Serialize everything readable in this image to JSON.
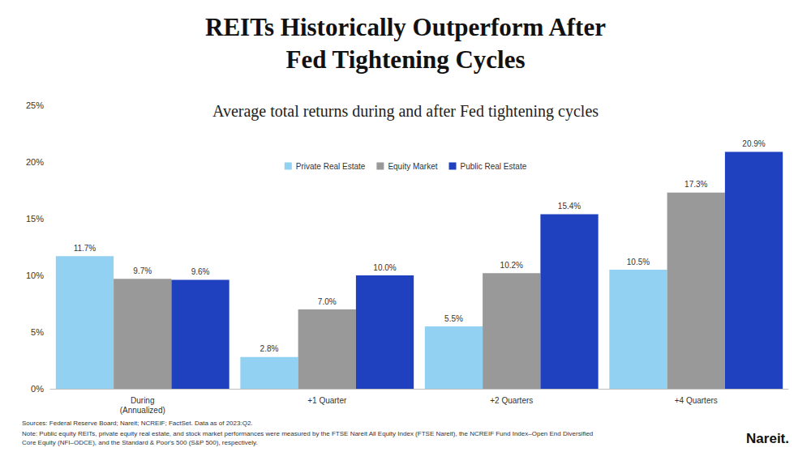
{
  "chart_data": {
    "type": "bar",
    "title": "REITs Historically Outperform After\nFed Tightening Cycles",
    "subtitle": "Average total returns during and after Fed tightening cycles",
    "categories": [
      "During\n(Annualized)",
      "+1 Quarter",
      "+2 Quarters",
      "+4 Quarters"
    ],
    "series": [
      {
        "name": "Private Real Estate",
        "color": "#92d1f1",
        "values": [
          11.7,
          2.8,
          5.5,
          10.5
        ],
        "value_labels": [
          "11.7%",
          "2.8%",
          "5.5%",
          "10.5%"
        ]
      },
      {
        "name": "Equity Market",
        "color": "#999999",
        "values": [
          9.7,
          7.0,
          10.2,
          17.3
        ],
        "value_labels": [
          "9.7%",
          "7.0%",
          "10.2%",
          "17.3%"
        ]
      },
      {
        "name": "Public Real Estate",
        "color": "#1f40bf",
        "values": [
          9.6,
          10.0,
          15.4,
          20.9
        ],
        "value_labels": [
          "9.6%",
          "10.0%",
          "15.4%",
          "20.9%"
        ]
      }
    ],
    "ylim": [
      0,
      25
    ],
    "yticks": [
      {
        "value": 0,
        "label": "0%"
      },
      {
        "value": 5,
        "label": "5%"
      },
      {
        "value": 10,
        "label": "10%"
      },
      {
        "value": 15,
        "label": "15%"
      },
      {
        "value": 20,
        "label": "20%"
      },
      {
        "value": 25,
        "label": "25%"
      }
    ],
    "grid": false,
    "legend": "top",
    "data_labels": true,
    "source": "Sources: Federal Reserve Board; Nareit; NCREIF; FactSet. Data as of 2023:Q2.",
    "note": "Note: Public equity REITs, private equity real estate, and stock market performances were measured by the FTSE Nareit All Equity Index (FTSE Nareit), the NCREIF Fund Index–Open End Diversified Core Equity (NFI–ODCE), and the Standard & Poor's 500 (S&P 500), respectively.",
    "logo": "Nareit."
  }
}
